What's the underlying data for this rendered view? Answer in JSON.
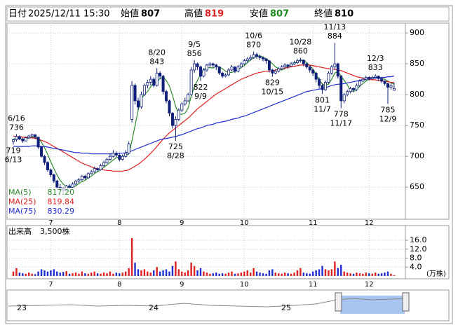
{
  "chart_data": {
    "type": "candlestick",
    "header": {
      "date_label": "日付",
      "date": "2025/12/11 15:30",
      "open_label": "始値",
      "high_label": "高値",
      "low_label": "安値",
      "close_label": "終値"
    },
    "categories": [
      null,
      null,
      null,
      null,
      null,
      null,
      null,
      null,
      null,
      null,
      null,
      null,
      "7",
      null,
      null,
      null,
      null,
      null,
      null,
      null,
      null,
      null,
      null,
      null,
      null,
      null,
      null,
      null,
      null,
      null,
      null,
      null,
      null,
      null,
      "8",
      null,
      null,
      null,
      null,
      null,
      null,
      null,
      null,
      null,
      null,
      null,
      null,
      null,
      null,
      null,
      null,
      null,
      null,
      null,
      "9",
      null,
      null,
      null,
      null,
      null,
      null,
      null,
      null,
      null,
      null,
      null,
      null,
      null,
      null,
      null,
      null,
      null,
      null,
      null,
      "10",
      null,
      null,
      null,
      null,
      null,
      null,
      null,
      null,
      null,
      null,
      null,
      null,
      null,
      null,
      null,
      null,
      null,
      null,
      null,
      null,
      null,
      "11",
      null,
      null,
      null,
      null,
      null,
      null,
      null,
      null,
      null,
      null,
      null,
      null,
      null,
      null,
      null,
      null,
      null,
      "12",
      null,
      null,
      null,
      null,
      null,
      null,
      null,
      null
    ],
    "candles": [
      [
        724,
        728,
        719,
        727
      ],
      [
        727,
        736,
        724,
        732
      ],
      [
        732,
        734,
        726,
        728
      ],
      [
        728,
        730,
        722,
        725
      ],
      [
        725,
        732,
        724,
        730
      ],
      [
        730,
        735,
        728,
        733
      ],
      [
        733,
        737,
        730,
        735
      ],
      [
        735,
        736,
        728,
        731
      ],
      [
        731,
        732,
        712,
        715
      ],
      [
        715,
        717,
        698,
        700
      ],
      [
        700,
        702,
        686,
        690
      ],
      [
        690,
        692,
        675,
        678
      ],
      [
        678,
        680,
        666,
        670
      ],
      [
        670,
        672,
        657,
        660
      ],
      [
        660,
        662,
        646,
        650
      ],
      [
        650,
        655,
        644,
        648
      ],
      [
        648,
        650,
        640,
        645
      ],
      [
        645,
        654,
        643,
        652
      ],
      [
        652,
        655,
        647,
        650
      ],
      [
        650,
        658,
        649,
        655
      ],
      [
        655,
        662,
        653,
        660
      ],
      [
        660,
        665,
        657,
        662
      ],
      [
        662,
        670,
        660,
        668
      ],
      [
        668,
        670,
        662,
        665
      ],
      [
        665,
        674,
        664,
        672
      ],
      [
        672,
        678,
        670,
        675
      ],
      [
        675,
        683,
        673,
        680
      ],
      [
        680,
        682,
        675,
        678
      ],
      [
        678,
        688,
        677,
        685
      ],
      [
        685,
        693,
        683,
        690
      ],
      [
        690,
        698,
        688,
        695
      ],
      [
        695,
        704,
        693,
        700
      ],
      [
        700,
        710,
        698,
        705
      ],
      [
        705,
        708,
        699,
        702
      ],
      [
        702,
        705,
        692,
        695
      ],
      [
        695,
        703,
        693,
        700
      ],
      [
        700,
        710,
        698,
        705
      ],
      [
        705,
        724,
        703,
        720
      ],
      [
        760,
        822,
        755,
        815
      ],
      [
        815,
        818,
        784,
        790
      ],
      [
        790,
        795,
        775,
        780
      ],
      [
        780,
        805,
        777,
        800
      ],
      [
        800,
        818,
        798,
        815
      ],
      [
        815,
        824,
        810,
        820
      ],
      [
        820,
        830,
        815,
        825
      ],
      [
        825,
        828,
        812,
        815
      ],
      [
        815,
        843,
        813,
        835
      ],
      [
        835,
        838,
        825,
        830
      ],
      [
        830,
        832,
        800,
        805
      ],
      [
        805,
        808,
        786,
        790
      ],
      [
        790,
        792,
        765,
        770
      ],
      [
        770,
        772,
        745,
        750
      ],
      [
        750,
        765,
        725,
        760
      ],
      [
        760,
        778,
        757,
        775
      ],
      [
        775,
        788,
        772,
        785
      ],
      [
        785,
        795,
        782,
        790
      ],
      [
        790,
        803,
        788,
        800
      ],
      [
        800,
        845,
        798,
        840
      ],
      [
        840,
        856,
        835,
        850
      ],
      [
        850,
        852,
        840,
        845
      ],
      [
        845,
        847,
        822,
        830
      ],
      [
        830,
        843,
        828,
        840
      ],
      [
        840,
        850,
        837,
        848
      ],
      [
        848,
        853,
        845,
        850
      ],
      [
        850,
        852,
        843,
        848
      ],
      [
        848,
        850,
        840,
        845
      ],
      [
        845,
        846,
        832,
        835
      ],
      [
        835,
        837,
        827,
        830
      ],
      [
        830,
        835,
        828,
        832
      ],
      [
        832,
        843,
        830,
        840
      ],
      [
        840,
        848,
        838,
        845
      ],
      [
        845,
        846,
        835,
        838
      ],
      [
        838,
        848,
        836,
        845
      ],
      [
        845,
        853,
        843,
        850
      ],
      [
        850,
        858,
        848,
        855
      ],
      [
        855,
        861,
        852,
        858
      ],
      [
        858,
        864,
        855,
        860
      ],
      [
        860,
        870,
        858,
        865
      ],
      [
        865,
        868,
        858,
        862
      ],
      [
        862,
        865,
        856,
        860
      ],
      [
        860,
        862,
        854,
        858
      ],
      [
        858,
        859,
        850,
        855
      ],
      [
        855,
        856,
        836,
        840
      ],
      [
        840,
        842,
        829,
        835
      ],
      [
        835,
        841,
        833,
        838
      ],
      [
        838,
        845,
        836,
        842
      ],
      [
        842,
        848,
        840,
        845
      ],
      [
        845,
        851,
        843,
        848
      ],
      [
        848,
        850,
        842,
        846
      ],
      [
        846,
        853,
        845,
        850
      ],
      [
        850,
        855,
        848,
        852
      ],
      [
        852,
        858,
        850,
        855
      ],
      [
        855,
        860,
        852,
        856
      ],
      [
        856,
        857,
        846,
        850
      ],
      [
        850,
        852,
        842,
        845
      ],
      [
        845,
        847,
        836,
        840
      ],
      [
        840,
        842,
        830,
        835
      ],
      [
        835,
        837,
        820,
        825
      ],
      [
        825,
        828,
        810,
        815
      ],
      [
        815,
        818,
        801,
        808
      ],
      [
        808,
        823,
        806,
        820
      ],
      [
        820,
        838,
        818,
        835
      ],
      [
        835,
        848,
        832,
        845
      ],
      [
        845,
        884,
        840,
        850
      ],
      [
        850,
        852,
        826,
        830
      ],
      [
        830,
        832,
        778,
        790
      ],
      [
        790,
        803,
        786,
        800
      ],
      [
        800,
        808,
        797,
        805
      ],
      [
        805,
        813,
        802,
        810
      ],
      [
        810,
        812,
        804,
        808
      ],
      [
        808,
        818,
        806,
        815
      ],
      [
        815,
        825,
        812,
        822
      ],
      [
        822,
        828,
        820,
        825
      ],
      [
        825,
        831,
        823,
        828
      ],
      [
        828,
        830,
        823,
        826
      ],
      [
        826,
        831,
        824,
        828
      ],
      [
        828,
        833,
        826,
        830
      ],
      [
        830,
        831,
        822,
        826
      ],
      [
        826,
        827,
        819,
        822
      ],
      [
        822,
        823,
        815,
        818
      ],
      [
        818,
        819,
        785,
        812
      ],
      [
        812,
        818,
        808,
        815
      ],
      [
        807,
        819,
        807,
        810
      ]
    ],
    "up_color": "#ffffff",
    "down_color": "#10207a",
    "candle_edge": "#10207a",
    "series": [
      {
        "name": "MA(5)",
        "color": "#2e8b2e",
        "last_label": "817.20",
        "values": [
          728,
          729,
          729,
          728,
          728,
          730,
          731,
          731,
          729,
          723,
          714,
          703,
          691,
          680,
          670,
          661,
          655,
          651,
          649,
          650,
          652,
          656,
          659,
          661,
          665,
          668,
          672,
          675,
          678,
          682,
          686,
          690,
          694,
          698,
          699,
          700,
          701,
          704,
          725,
          750,
          775,
          793,
          800,
          805,
          813,
          819,
          821,
          826,
          828,
          823,
          814,
          799,
          781,
          769,
          768,
          770,
          778,
          798,
          813,
          823,
          833,
          841,
          843,
          844,
          843,
          846,
          845,
          842,
          838,
          836,
          836,
          838,
          840,
          844,
          847,
          852,
          856,
          860,
          862,
          863,
          861,
          858,
          855,
          850,
          845,
          842,
          840,
          842,
          846,
          848,
          850,
          853,
          856,
          856,
          852,
          847,
          841,
          833,
          824,
          817,
          815,
          817,
          825,
          835,
          838,
          830,
          823,
          816,
          807,
          805,
          808,
          814,
          818,
          822,
          825,
          827,
          828,
          828,
          826,
          825,
          822,
          819,
          817.2
        ]
      },
      {
        "name": "MA(25)",
        "color": "#e02020",
        "last_label": "819.84",
        "values": [
          733,
          732,
          732,
          731,
          731,
          730,
          730,
          729,
          728,
          726,
          724,
          722,
          719,
          716,
          713,
          710,
          707,
          704,
          701,
          698,
          695,
          692,
          689,
          687,
          685,
          683,
          681,
          680,
          679,
          678,
          677,
          677,
          676,
          676,
          676,
          676,
          677,
          678,
          681,
          684,
          687,
          691,
          695,
          700,
          705,
          710,
          716,
          722,
          728,
          733,
          738,
          742,
          746,
          750,
          754,
          758,
          762,
          767,
          772,
          777,
          781,
          785,
          789,
          793,
          797,
          801,
          804,
          807,
          810,
          813,
          816,
          819,
          822,
          825,
          827,
          829,
          831,
          833,
          835,
          836,
          837,
          838,
          838,
          839,
          840,
          841,
          842,
          843,
          844,
          845,
          846,
          847,
          848,
          848,
          848,
          848,
          847,
          846,
          845,
          844,
          843,
          842,
          842,
          841,
          840,
          839,
          837,
          835,
          833,
          831,
          829,
          828,
          827,
          826,
          825,
          824,
          824,
          823,
          822,
          822,
          821,
          820,
          819.84
        ]
      },
      {
        "name": "MA(75)",
        "color": "#2030d0",
        "last_label": "830.29",
        "values": [
          716,
          716,
          716,
          716,
          716,
          716,
          717,
          717,
          717,
          716,
          716,
          715,
          714,
          713,
          712,
          711,
          710,
          709,
          708,
          707,
          706,
          706,
          705,
          705,
          705,
          704,
          704,
          704,
          704,
          704,
          704,
          704,
          704,
          704,
          705,
          705,
          706,
          707,
          709,
          711,
          713,
          715,
          717,
          719,
          721,
          723,
          725,
          727,
          728,
          729,
          730,
          731,
          732,
          734,
          735,
          737,
          739,
          741,
          743,
          745,
          746,
          748,
          750,
          751,
          752,
          754,
          755,
          756,
          757,
          758,
          760,
          761,
          762,
          764,
          765,
          767,
          769,
          771,
          773,
          775,
          777,
          779,
          781,
          783,
          785,
          787,
          789,
          791,
          793,
          795,
          797,
          799,
          801,
          803,
          805,
          806,
          807,
          808,
          809,
          810,
          811,
          813,
          815,
          816,
          817,
          817,
          818,
          819,
          820,
          821,
          822,
          823,
          824,
          825,
          826,
          826,
          827,
          827,
          828,
          828,
          829,
          829,
          830.29
        ]
      }
    ],
    "annotations": [
      {
        "date": "6/16",
        "value": 736,
        "at": "high"
      },
      {
        "date": "6/13",
        "value": 719,
        "at": "low"
      },
      {
        "date": "8/20",
        "value": 843,
        "at": "high"
      },
      {
        "date": "8/28",
        "value": 725,
        "at": "low"
      },
      {
        "date": "9/5",
        "value": 856,
        "at": "high"
      },
      {
        "date": "9/9",
        "value": 822,
        "at": "low"
      },
      {
        "date": "10/6",
        "value": 870,
        "at": "high"
      },
      {
        "date": "10/15",
        "value": 829,
        "at": "low"
      },
      {
        "date": "10/28",
        "value": 860,
        "at": "high"
      },
      {
        "date": "11/7",
        "value": 801,
        "at": "low"
      },
      {
        "date": "11/13",
        "value": 884,
        "at": "high"
      },
      {
        "date": "11/17",
        "value": 778,
        "at": "low"
      },
      {
        "date": "12/3",
        "value": 833,
        "at": "high"
      },
      {
        "date": "12/9",
        "value": 785,
        "at": "low"
      }
    ],
    "ylim": [
      598,
      916
    ],
    "yticks": [
      650,
      700,
      750,
      800,
      850,
      900
    ],
    "grid": true,
    "volume": {
      "title": "出来高",
      "latest": "3,500株",
      "unit": "(万株)",
      "up_color": "#e02020",
      "down_color": "#2030d0",
      "values": [
        2.0,
        3.5,
        1.5,
        1.2,
        1.0,
        1.5,
        1.0,
        0.8,
        2.0,
        3.0,
        2.5,
        2.0,
        2.5,
        3.0,
        2.0,
        1.5,
        1.8,
        2.2,
        1.0,
        1.2,
        1.5,
        1.0,
        2.0,
        1.2,
        1.0,
        1.5,
        2.0,
        1.2,
        1.0,
        1.5,
        1.2,
        2.0,
        1.0,
        1.5,
        1.2,
        1.5,
        2.0,
        3.5,
        17.0,
        6.0,
        3.0,
        2.5,
        3.0,
        2.0,
        1.5,
        2.5,
        4.0,
        2.0,
        2.5,
        3.0,
        2.0,
        4.5,
        6.5,
        3.0,
        2.0,
        1.5,
        2.5,
        6.0,
        4.5,
        2.5,
        3.5,
        2.0,
        1.5,
        1.0,
        1.2,
        1.5,
        1.0,
        1.2,
        1.0,
        1.5,
        2.0,
        1.0,
        1.2,
        1.5,
        2.0,
        2.5,
        1.5,
        3.5,
        2.0,
        1.5,
        1.2,
        1.0,
        2.5,
        3.0,
        1.5,
        1.2,
        1.0,
        1.5,
        1.2,
        1.0,
        1.5,
        2.5,
        3.5,
        1.5,
        1.2,
        1.0,
        2.0,
        2.5,
        3.0,
        4.5,
        3.0,
        2.5,
        3.0,
        6.5,
        3.5,
        5.0,
        2.0,
        1.5,
        1.2,
        1.0,
        1.5,
        1.2,
        1.0,
        1.5,
        1.2,
        1.0,
        1.5,
        1.0,
        1.2,
        1.5,
        2.0,
        1.0,
        0.35
      ],
      "ylim": [
        0,
        22.6
      ],
      "yticks": [
        {
          "value": 4,
          "label": "4.0"
        },
        {
          "value": 8,
          "label": "8.0"
        },
        {
          "value": 12,
          "label": "12.0"
        },
        {
          "value": 16,
          "label": "16.0"
        }
      ]
    },
    "navigator": {
      "labels": [
        "23",
        "24",
        "25"
      ]
    }
  }
}
